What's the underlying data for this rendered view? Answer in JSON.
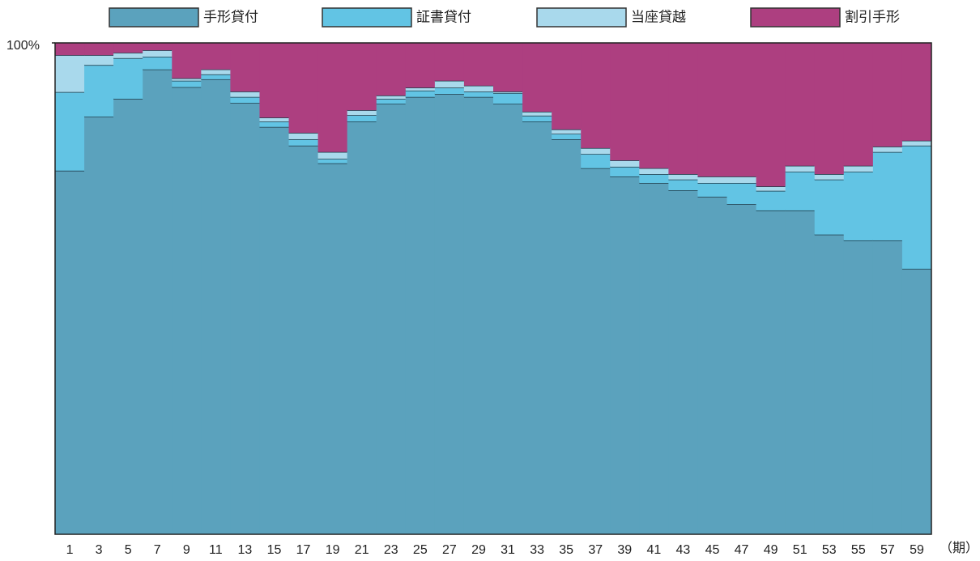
{
  "chart_data": {
    "type": "stacked_step",
    "categories": [
      "1",
      "3",
      "5",
      "7",
      "9",
      "11",
      "13",
      "15",
      "17",
      "19",
      "21",
      "23",
      "25",
      "27",
      "29",
      "31",
      "33",
      "35",
      "37",
      "39",
      "41",
      "43",
      "45",
      "47",
      "49",
      "51",
      "53",
      "55",
      "57",
      "59"
    ],
    "x_label": "（期）",
    "ylim": [
      0,
      100
    ],
    "yticks": [
      {
        "value": 100,
        "label": "100%"
      }
    ],
    "series": [
      {
        "name": "手形貸付",
        "color": "#5ba2bd",
        "values": [
          74,
          85,
          88.6,
          94.6,
          91,
          92.6,
          87.8,
          82.9,
          79.1,
          75.5,
          84,
          87.6,
          89,
          89.6,
          89,
          87.6,
          84,
          80.4,
          74.5,
          72.8,
          71.5,
          70,
          68.7,
          67.2,
          65.9,
          65.9,
          61,
          59.8,
          59.8,
          54
        ]
      },
      {
        "name": "証書貸付",
        "color": "#62c4e4",
        "values": [
          16,
          10.5,
          8.3,
          2.6,
          1.3,
          1,
          1.2,
          1.1,
          1.3,
          0.9,
          1.3,
          1,
          1.3,
          1.3,
          1.1,
          2.2,
          1.2,
          1.1,
          2.9,
          2,
          1.8,
          2.2,
          2.8,
          4.3,
          4,
          7.9,
          11.2,
          14,
          18,
          25.1
        ]
      },
      {
        "name": "当座貸越",
        "color": "#a9d9ec",
        "values": [
          7.5,
          2,
          1.1,
          1.3,
          0.5,
          1,
          1.1,
          0.8,
          1.3,
          1.4,
          1,
          0.7,
          0.6,
          1.4,
          1.2,
          0.3,
          0.8,
          0.9,
          1.2,
          1.3,
          1.2,
          1.1,
          1.3,
          1.3,
          0.9,
          1.2,
          1.1,
          1.2,
          1.1,
          1
        ]
      },
      {
        "name": "割引手形",
        "color": "#ad3f80",
        "values": [
          2.5,
          2.5,
          2,
          1.5,
          7.2,
          5.4,
          9.9,
          15.2,
          18.3,
          22.2,
          13.7,
          10.7,
          9.1,
          7.7,
          8.7,
          9.9,
          14,
          17.6,
          21.4,
          23.9,
          25.5,
          26.7,
          27.2,
          27.2,
          29.2,
          25,
          26.7,
          25,
          21.1,
          19.9
        ]
      }
    ]
  }
}
